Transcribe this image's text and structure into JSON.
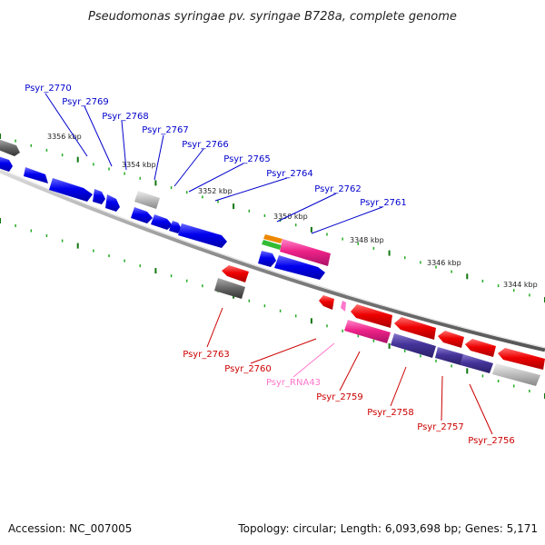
{
  "title": "Pseudomonas syringae pv. syringae B728a, complete genome",
  "footer": {
    "accession": "Accession: NC_007005",
    "summary": "Topology: circular; Length: 6,093,698 bp; Genes: 5,171"
  },
  "colors": {
    "forward_label": "#0000cc",
    "reverse_label": "#cc0000",
    "rna_label": "#ff77cc",
    "forward_gene": "#0000ee",
    "reverse_gene": "#ee0000",
    "pink_gene": "#ee2288",
    "purple_gene": "#443399",
    "grey_gene": "#aaaaaa",
    "tick_green": "#117711"
  },
  "ticks": [
    {
      "label": "3356 kbp"
    },
    {
      "label": "3354 kbp"
    },
    {
      "label": "3352 kbp"
    },
    {
      "label": "3350 kbp"
    },
    {
      "label": "3348 kbp"
    },
    {
      "label": "3346 kbp"
    },
    {
      "label": "3344 kbp"
    }
  ],
  "forward_labels": [
    {
      "name": "Psyr_2770"
    },
    {
      "name": "Psyr_2769"
    },
    {
      "name": "Psyr_2768"
    },
    {
      "name": "Psyr_2767"
    },
    {
      "name": "Psyr_2766"
    },
    {
      "name": "Psyr_2765"
    },
    {
      "name": "Psyr_2764"
    },
    {
      "name": "Psyr_2762"
    },
    {
      "name": "Psyr_2761"
    }
  ],
  "reverse_labels": [
    {
      "name": "Psyr_2763"
    },
    {
      "name": "Psyr_2760"
    },
    {
      "name": "Psyr_RNA43"
    },
    {
      "name": "Psyr_2759"
    },
    {
      "name": "Psyr_2758"
    },
    {
      "name": "Psyr_2757"
    },
    {
      "name": "Psyr_2756"
    }
  ]
}
